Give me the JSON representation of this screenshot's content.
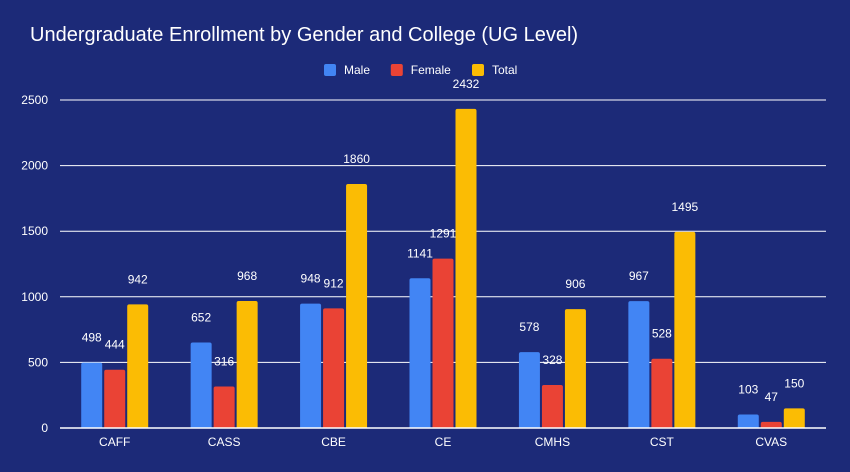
{
  "chart_data": {
    "type": "bar",
    "title": "Undergraduate Enrollment by Gender and College (UG Level)",
    "xlabel": "",
    "ylabel": "",
    "ylim": [
      0,
      2500
    ],
    "yticks": [
      0,
      500,
      1000,
      1500,
      2000,
      2500
    ],
    "grid": true,
    "legend_position": "top-center",
    "categories": [
      "CAFF",
      "CASS",
      "CBE",
      "CE",
      "CMHS",
      "CST",
      "CVAS"
    ],
    "series": [
      {
        "name": "Male",
        "color": "#4285f4",
        "values": [
          498,
          652,
          948,
          1141,
          578,
          967,
          103
        ]
      },
      {
        "name": "Female",
        "color": "#ea4335",
        "values": [
          444,
          316,
          912,
          1291,
          328,
          528,
          47
        ]
      },
      {
        "name": "Total",
        "color": "#fbbc04",
        "values": [
          942,
          968,
          1860,
          2432,
          906,
          1495,
          150
        ]
      }
    ]
  },
  "colors": {
    "background": "#1c2a78",
    "text": "#ffffff",
    "grid": "#ffffff"
  }
}
